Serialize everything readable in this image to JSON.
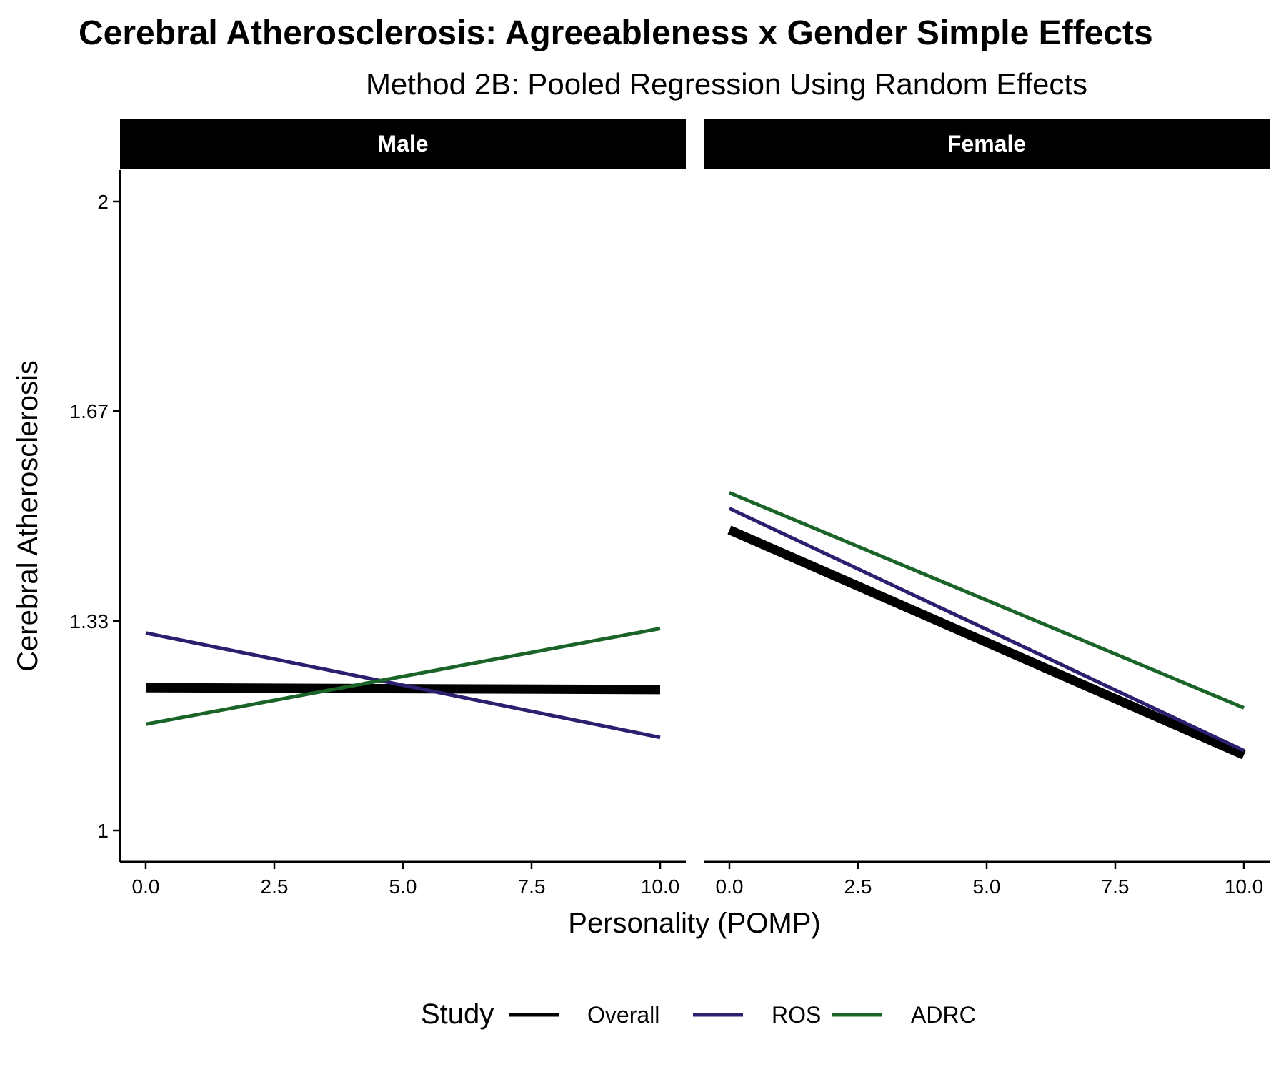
{
  "chart_data": {
    "type": "line",
    "title": "Cerebral Atherosclerosis: Agreeableness x Gender Simple Effects",
    "subtitle": "Method 2B: Pooled Regression Using Random Effects",
    "xlabel": "Personality (POMP)",
    "ylabel": "Cerebral Atherosclerosis",
    "xlim": [
      -0.5,
      10.5
    ],
    "ylim": [
      0.95,
      2.05
    ],
    "xticks": [
      "0.0",
      "2.5",
      "5.0",
      "7.5",
      "10.0"
    ],
    "xtick_values": [
      0,
      2.5,
      5,
      7.5,
      10
    ],
    "yticks": [
      "1",
      "1.33",
      "1.67",
      "2"
    ],
    "ytick_values": [
      1,
      1.333,
      1.667,
      2
    ],
    "legend": {
      "title": "Study",
      "position": "bottom"
    },
    "facets": [
      {
        "label": "Male",
        "series": [
          {
            "name": "Overall",
            "color": "#000000",
            "x": [
              0,
              10
            ],
            "y": [
              1.227,
              1.224
            ]
          },
          {
            "name": "ROS",
            "color": "#2c1f6f",
            "x": [
              0,
              10
            ],
            "y": [
              1.314,
              1.148
            ]
          },
          {
            "name": "ADRC",
            "color": "#1b6428",
            "x": [
              0,
              10
            ],
            "y": [
              1.169,
              1.321
            ]
          }
        ]
      },
      {
        "label": "Female",
        "series": [
          {
            "name": "Overall",
            "color": "#000000",
            "x": [
              0,
              10
            ],
            "y": [
              1.478,
              1.12
            ]
          },
          {
            "name": "ROS",
            "color": "#2c1f6f",
            "x": [
              0,
              10
            ],
            "y": [
              1.512,
              1.127
            ]
          },
          {
            "name": "ADRC",
            "color": "#1b6428",
            "x": [
              0,
              10
            ],
            "y": [
              1.537,
              1.195
            ]
          }
        ]
      }
    ]
  }
}
